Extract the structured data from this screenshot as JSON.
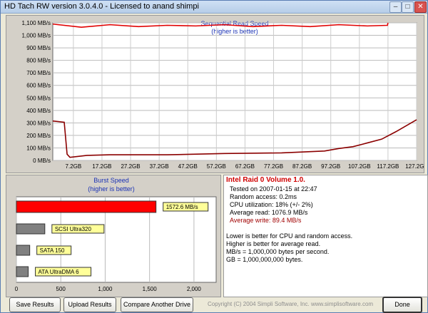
{
  "window": {
    "title": "HD Tach RW version 3.0.4.0 - Licensed to anand shimpi"
  },
  "read_chart": {
    "title": "Sequential Read Speed",
    "subtitle": "(higher is better)",
    "y_ticks": [
      "0 MB/s",
      "100 MB/s",
      "200 MB/s",
      "300 MB/s",
      "400 MB/s",
      "500 MB/s",
      "600 MB/s",
      "700 MB/s",
      "800 MB/s",
      "900 MB/s",
      "1,000 MB/s",
      "1,100 MB/s"
    ],
    "x_ticks": [
      "7.2GB",
      "17.2GB",
      "27.2GB",
      "37.2GB",
      "47.2GB",
      "57.2GB",
      "67.2GB",
      "77.2GB",
      "87.2GB",
      "97.2GB",
      "107.2GB",
      "117.2GB",
      "127.2GB"
    ]
  },
  "chart_data": [
    {
      "type": "line",
      "title": "Sequential Read Speed",
      "subtitle": "(higher is better)",
      "ylim": [
        0,
        1100
      ],
      "xlim": [
        0,
        127.2
      ],
      "series": [
        {
          "color": "#e00000",
          "x": [
            0,
            10,
            20,
            30,
            40,
            50,
            60,
            70,
            80,
            90,
            100,
            110,
            117,
            117.2
          ],
          "y": [
            1090,
            1065,
            1085,
            1070,
            1080,
            1075,
            1085,
            1070,
            1080,
            1070,
            1085,
            1075,
            1080,
            1100
          ]
        },
        {
          "color": "#8b0000",
          "x": [
            0,
            4,
            5,
            6,
            12,
            20,
            40,
            60,
            80,
            95,
            100,
            105,
            110,
            115,
            120,
            127.2
          ],
          "y": [
            315,
            305,
            50,
            25,
            40,
            45,
            45,
            55,
            60,
            75,
            95,
            110,
            140,
            170,
            230,
            325
          ]
        }
      ]
    },
    {
      "type": "bar",
      "title": "Burst Speed",
      "subtitle": "(higher is better)",
      "categories": [
        "",
        "SCSI Ultra320",
        "SATA 150",
        "ATA UltraDMA 6"
      ],
      "values": [
        1572.6,
        320,
        150,
        133
      ],
      "value_labels": [
        "1572.6 MB/s",
        "",
        "",
        ""
      ],
      "colors": [
        "#ff0000",
        "#808080",
        "#808080",
        "#808080"
      ],
      "xlim": [
        0,
        2250
      ]
    }
  ],
  "burst_chart": {
    "title": "Burst Speed",
    "subtitle": "(higher is better)",
    "x_ticks": [
      "0",
      "500",
      "1,000",
      "1,500",
      "2,000"
    ]
  },
  "info": {
    "drive_name": "Intel Raid 0 Volume 1.0.",
    "tested_on": "Tested on 2007-01-15 at 22:47",
    "random_access": "Random access: 0.2ms",
    "cpu": "CPU utilization: 18% (+/- 2%)",
    "avg_read": "Average read: 1076.9 MB/s",
    "avg_write": "Average write: 89.4 MB/s",
    "note1": "Lower is better for CPU and random access.",
    "note2": "Higher is better for average read.",
    "note3": "MB/s = 1,000,000 bytes per second.",
    "note4": "GB = 1,000,000,000 bytes."
  },
  "buttons": {
    "save": "Save Results",
    "upload": "Upload Results",
    "compare": "Compare Another Drive",
    "done": "Done"
  },
  "footer": {
    "copyright": "Copyright (C) 2004 Simpli Software, Inc. www.simplisoftware.com"
  }
}
